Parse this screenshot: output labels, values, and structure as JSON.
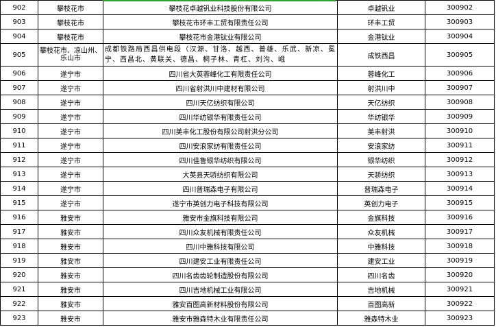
{
  "table": {
    "rows": [
      [
        "902",
        "攀枝花市",
        "攀枝花卓越钒业科技股份有限公司",
        "卓越钒业",
        "300902"
      ],
      [
        "903",
        "攀枝花市",
        "攀枝花市环丰工贸有限责任公司",
        "环丰工贸",
        "300903"
      ],
      [
        "904",
        "攀枝花市",
        "攀枝花市金港钛业有限公司",
        "金港钛业",
        "300904"
      ],
      [
        "905",
        "攀枝花市、凉山州、乐山市",
        "成都铁路局西昌供电段（汉源、甘洛、越西、普雄、乐武、新凉、冕宁、西昌北、黄联关、德昌、桐子林、青杠、刘沟、峨",
        "成铁西昌",
        "300905"
      ],
      [
        "906",
        "遂宁市",
        "四川省大英蓉峰化工有限责任公司",
        "蓉峰化工",
        "300906"
      ],
      [
        "907",
        "遂宁市",
        "四川省射洪川中建材有限公司",
        "射洪川中",
        "300907"
      ],
      [
        "908",
        "遂宁市",
        "四川天亿纺织有限公司",
        "天亿纺织",
        "300908"
      ],
      [
        "909",
        "遂宁市",
        "四川华纺银华有限责任公司",
        "华纺银华",
        "300909"
      ],
      [
        "910",
        "遂宁市",
        "四川美丰化工股份有限公司射洪分公司",
        "美丰射洪",
        "300910"
      ],
      [
        "911",
        "遂宁市",
        "四川安浪家纺有限责任公司",
        "安浪家纺",
        "300911"
      ],
      [
        "912",
        "遂宁市",
        "四川佳鲁银华纺织有限公司",
        "银华纺织",
        "300912"
      ],
      [
        "913",
        "遂宁市",
        "大英县天骄纺织有限公司",
        "天骄纺织",
        "300913"
      ],
      [
        "914",
        "遂宁市",
        "四川普瑞森电子有限公司",
        "普瑞森电子",
        "300914"
      ],
      [
        "915",
        "遂宁市",
        "遂宁市英创力电子科技有限公司",
        "英创力电子",
        "300915"
      ],
      [
        "916",
        "雅安市",
        "雅安市金旗科技有限公司",
        "金旗科技",
        "300916"
      ],
      [
        "917",
        "雅安市",
        "四川众友机械有限责任公司",
        "众友机械",
        "300917"
      ],
      [
        "918",
        "雅安市",
        "四川中雅科技有限公司",
        "中雅科技",
        "300918"
      ],
      [
        "919",
        "雅安市",
        "四川建安工业有限责任公司",
        "建安工业",
        "300919"
      ],
      [
        "920",
        "雅安市",
        "四川名齿齿轮制造股份有限公司",
        "四川名齿",
        "300920"
      ],
      [
        "921",
        "雅安市",
        "四川吉地机械工业有限公司",
        "吉地机械",
        "300921"
      ],
      [
        "922",
        "雅安市",
        "雅安百图高新材料股份有限公司",
        "百图高新",
        "300922"
      ],
      [
        "923",
        "雅安市",
        "雅安市雅森特木业有限责任公司",
        "雅森特木业",
        "300923"
      ]
    ]
  }
}
